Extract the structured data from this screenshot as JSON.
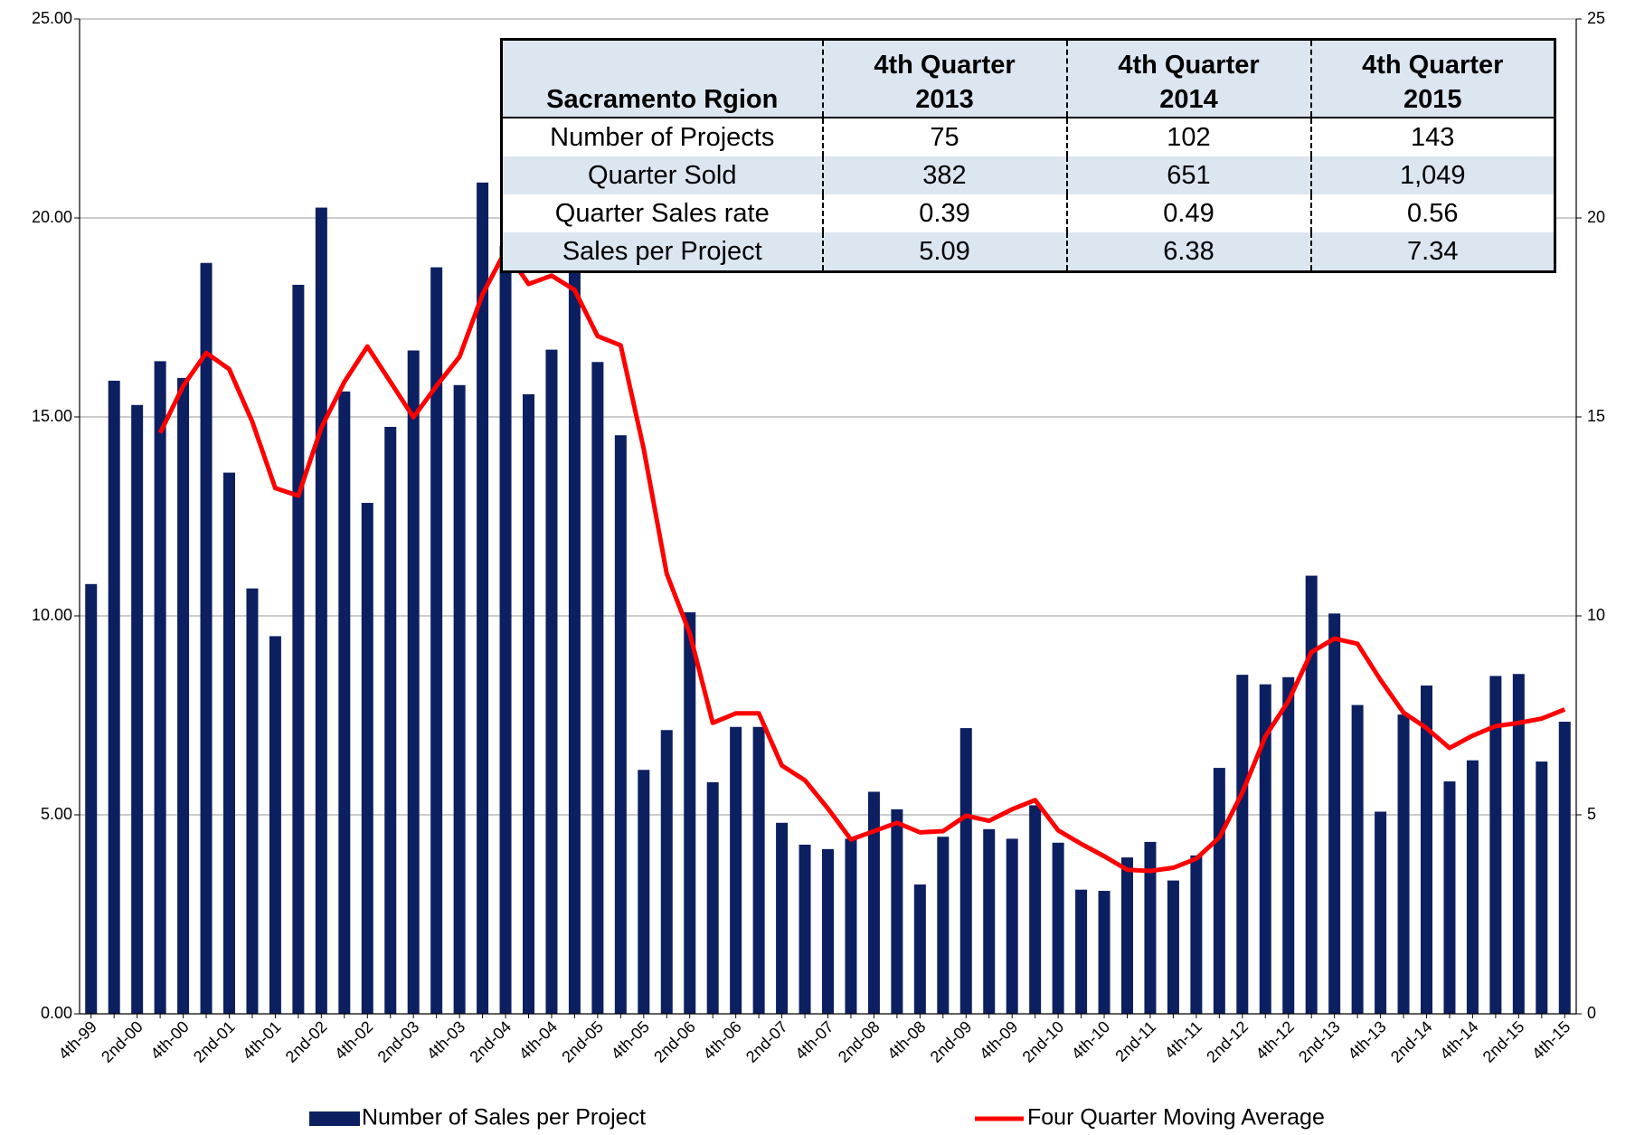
{
  "chart_data": {
    "type": "bar",
    "categories": [
      "4th-99",
      null,
      "2nd-00",
      null,
      "4th-00",
      null,
      "2nd-01",
      null,
      "4th-01",
      null,
      "2nd-02",
      null,
      "4th-02",
      null,
      "2nd-03",
      null,
      "4th-03",
      null,
      "2nd-04",
      null,
      "4th-04",
      null,
      "2nd-05",
      null,
      "4th-05",
      null,
      "2nd-06",
      null,
      "4th-06",
      null,
      "2nd-07",
      null,
      "4th-07",
      null,
      "2nd-08",
      null,
      "4th-08",
      null,
      "2nd-09",
      null,
      "4th-09",
      null,
      "2nd-10",
      null,
      "4th-10",
      null,
      "2nd-11",
      null,
      "4th-11",
      null,
      "2nd-12",
      null,
      "4th-12",
      null,
      "2nd-13",
      null,
      "4th-13",
      null,
      "2nd-14",
      null,
      "4th-14",
      null,
      "2nd-15",
      null,
      "4th-15"
    ],
    "series": [
      {
        "name": "Number of Sales per Project",
        "type": "bar",
        "color": "#0c1f60",
        "values": [
          10.8,
          15.91,
          15.3,
          16.4,
          15.98,
          18.87,
          13.6,
          10.69,
          9.49,
          18.32,
          20.26,
          15.64,
          12.84,
          14.75,
          16.67,
          18.76,
          15.8,
          20.89,
          19.3,
          15.57,
          16.69,
          19.0,
          16.38,
          14.54,
          6.13,
          7.13,
          10.09,
          5.82,
          7.21,
          7.21,
          4.8,
          4.25,
          4.14,
          4.4,
          5.58,
          5.14,
          3.25,
          4.45,
          7.18,
          4.64,
          4.4,
          5.24,
          4.3,
          3.12,
          3.09,
          3.93,
          4.32,
          3.35,
          3.98,
          6.18,
          8.52,
          8.28,
          8.46,
          11.01,
          10.06,
          7.76,
          5.08,
          7.52,
          8.25,
          5.84,
          6.37,
          8.49,
          8.54,
          6.34,
          7.34
        ]
      },
      {
        "name": "Four Quarter Moving Average",
        "type": "line",
        "color": "#ff0000",
        "axis": "y2",
        "values": [
          null,
          null,
          null,
          14.6,
          15.78,
          16.61,
          16.2,
          14.88,
          13.21,
          13.02,
          14.73,
          15.88,
          16.77,
          15.88,
          14.99,
          15.78,
          16.51,
          18.08,
          19.18,
          18.34,
          18.55,
          18.19,
          17.03,
          16.8,
          14.2,
          11.06,
          9.56,
          7.31,
          7.55,
          7.55,
          6.24,
          5.87,
          5.16,
          4.38,
          4.59,
          4.8,
          4.56,
          4.59,
          4.98,
          4.85,
          5.14,
          5.37,
          4.61,
          4.27,
          3.96,
          3.62,
          3.59,
          3.67,
          3.9,
          4.43,
          5.56,
          6.97,
          7.86,
          9.09,
          9.43,
          9.3,
          8.39,
          7.57,
          7.18,
          6.68,
          6.99,
          7.23,
          7.31,
          7.42,
          7.65
        ]
      }
    ],
    "ylim": [
      0,
      25
    ],
    "yticks": [
      {
        "value": 0,
        "label": "0.00"
      },
      {
        "value": 5,
        "label": "5.00"
      },
      {
        "value": 10,
        "label": "10.00"
      },
      {
        "value": 15,
        "label": "15.00"
      },
      {
        "value": 20,
        "label": "20.00"
      },
      {
        "value": 25,
        "label": "25.00"
      }
    ],
    "y2lim": [
      0,
      25
    ],
    "y2ticks": [
      0,
      5,
      10,
      15,
      20,
      25
    ],
    "grid": true,
    "table": {
      "columns": [
        "Sacramento Rgion",
        "4th Quarter\n2013",
        "4th Quarter\n2014",
        "4th Quarter\n2015"
      ],
      "rows": [
        [
          "Number of Projects",
          "75",
          "102",
          "143"
        ],
        [
          "Quarter Sold",
          "382",
          "651",
          "1,049"
        ],
        [
          "Quarter Sales rate",
          "0.39",
          "0.49",
          "0.56"
        ],
        [
          "Sales per Project",
          "5.09",
          "6.38",
          "7.34"
        ]
      ]
    }
  }
}
